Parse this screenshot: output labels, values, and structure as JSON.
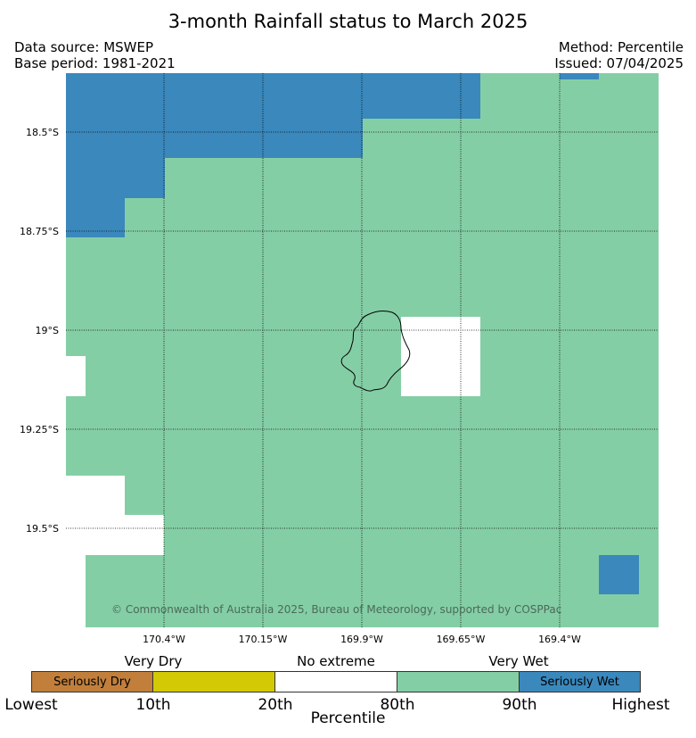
{
  "title": "3-month Rainfall status to March 2025",
  "data_source": "Data source: MSWEP",
  "base_period": "Base period: 1981-2021",
  "method": "Method: Percentile",
  "issued": "Issued: 07/04/2025",
  "credit": "© Commonwealth of Australia 2025, Bureau of Meteorology, supported by COSPPac",
  "map": {
    "lat_labels": [
      "18.5°S",
      "18.75°S",
      "19°S",
      "19.25°S",
      "19.5°S"
    ],
    "lon_labels": [
      "170.4°W",
      "170.15°W",
      "169.9°W",
      "169.65°W",
      "169.4°W"
    ],
    "background_category": "Very Wet",
    "seriously_wet_regions": "north-west and north edge; small cell in south-east",
    "no_extreme_regions": "west edge and east of the island",
    "island": "Niue",
    "colors": {
      "seriously_dry": "#c17f3b",
      "very_dry": "#d4c905",
      "no_extreme": "#ffffff",
      "very_wet": "#84cea5",
      "seriously_wet": "#3a88bc"
    }
  },
  "legend": {
    "categories": [
      "Very Dry",
      "No extreme",
      "Very Wet"
    ],
    "boxes": [
      "Seriously Dry",
      "",
      "",
      "",
      "Seriously Wet"
    ],
    "ticks": [
      "Lowest",
      "10th",
      "20th",
      "80th",
      "90th",
      "Highest"
    ],
    "axis_label": "Percentile"
  }
}
